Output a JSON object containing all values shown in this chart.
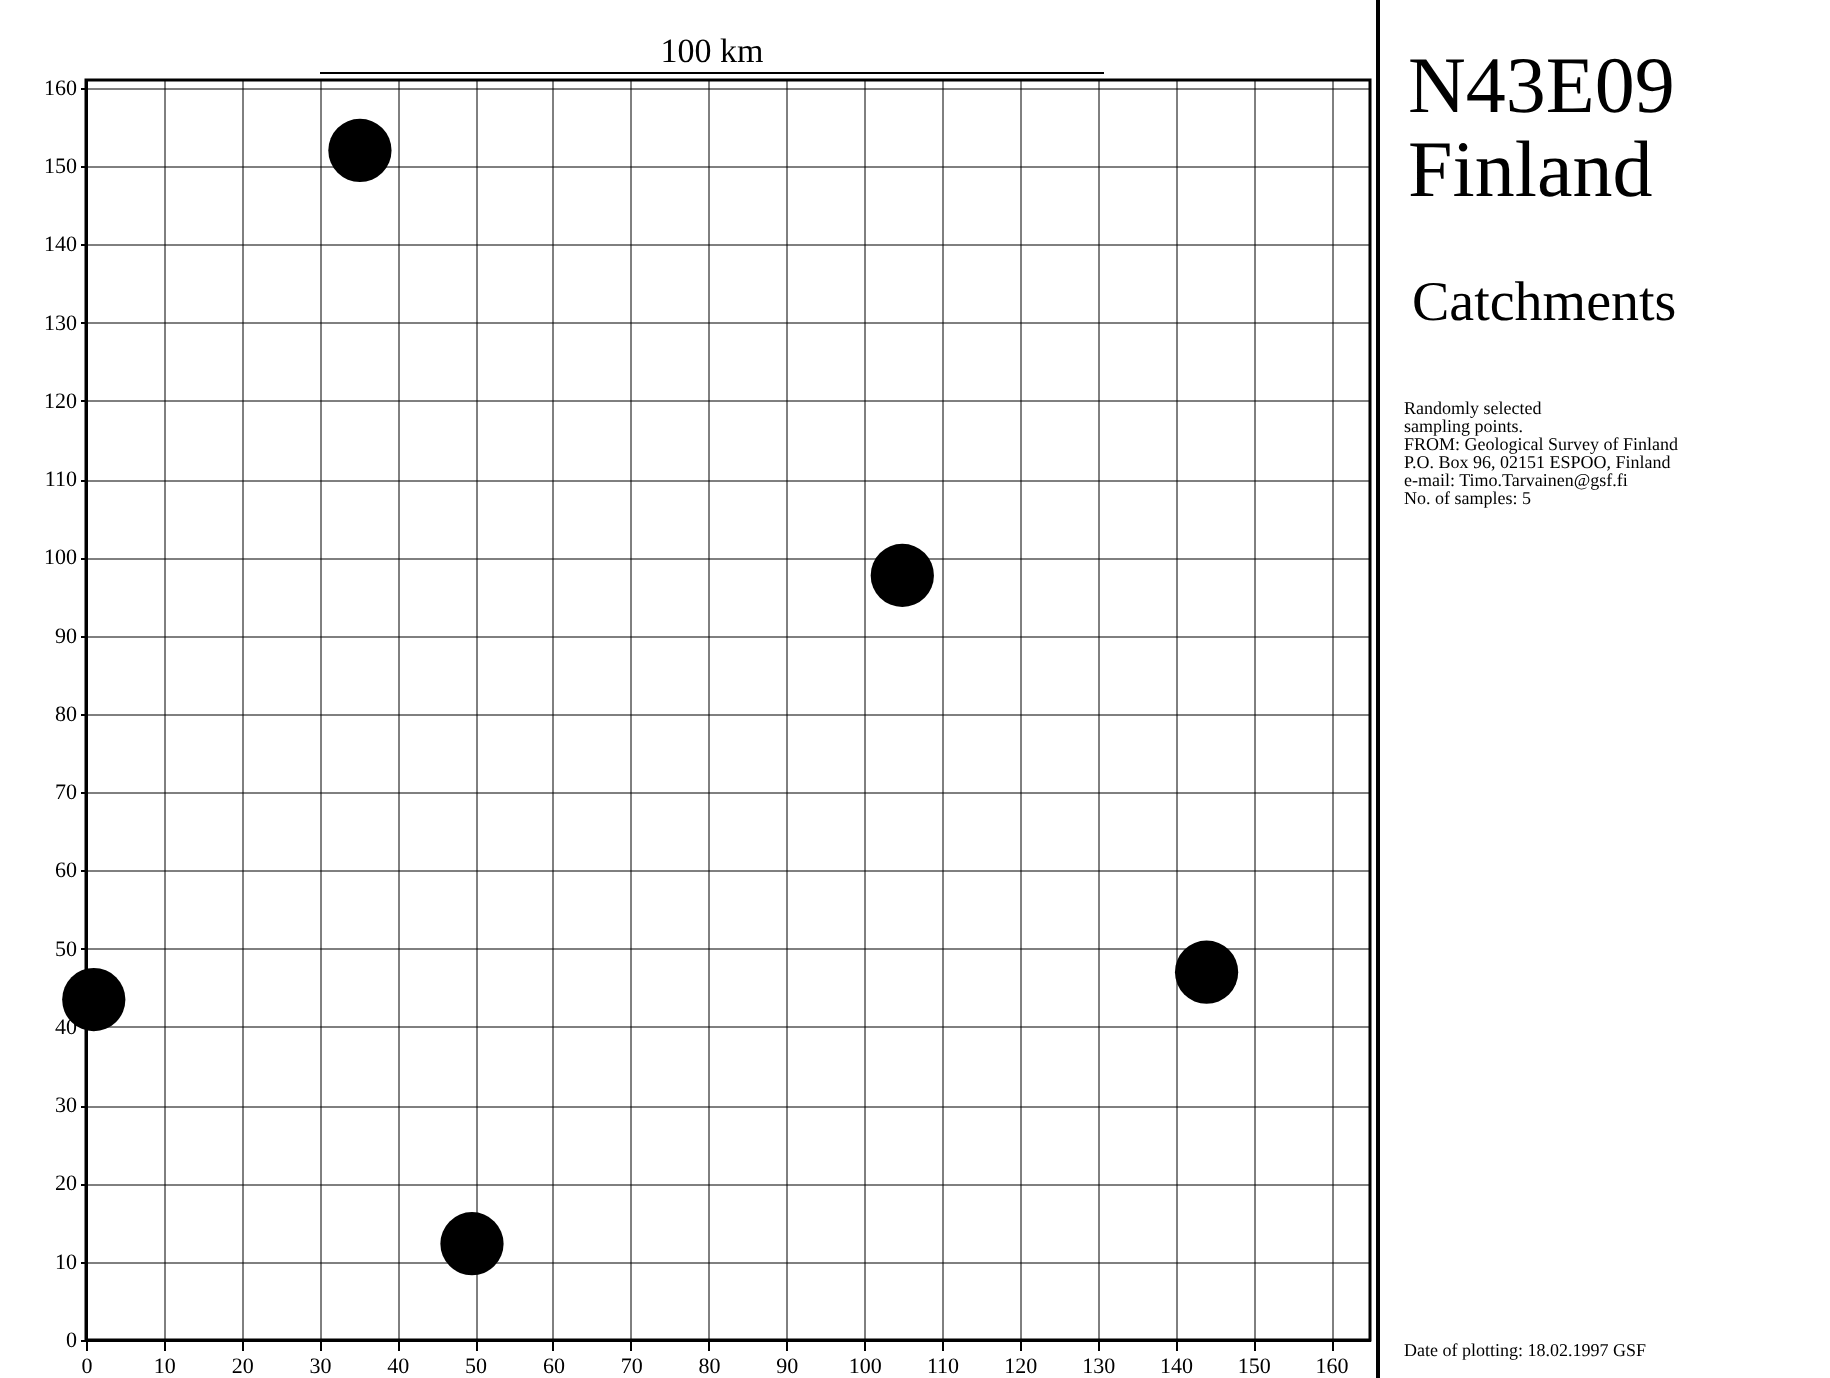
{
  "chart_data": {
    "type": "scatter",
    "title": "N43E09\nFinland",
    "subtitle": "Catchments",
    "annotations": [
      "100 km",
      "Randomly selected\nsampling points.\nFROM: Geological Survey of Finland\nP.O. Box 96, 02151 ESPOO, Finland\ne-mail: Timo.Tarvainen@gsf.fi\nNo. of samples: 5",
      "Date of plotting: 18.02.1997 GSF"
    ],
    "x": [
      35.2,
      104.9,
      1,
      144,
      49.6
    ],
    "series": [
      {
        "color": "#000000",
        "values": [
          152,
          97.7,
          43.5,
          47,
          12.3
        ]
      }
    ],
    "xlim": [
      0,
      165
    ],
    "ylim": [
      0,
      161
    ],
    "xticks": [
      0,
      10,
      20,
      30,
      40,
      50,
      60,
      70,
      80,
      90,
      100,
      110,
      120,
      130,
      140,
      150,
      160
    ],
    "yticks": [
      0,
      10,
      20,
      30,
      40,
      50,
      60,
      70,
      80,
      90,
      100,
      110,
      120,
      130,
      140,
      150,
      160
    ],
    "grid": true,
    "marker": "circle"
  }
}
